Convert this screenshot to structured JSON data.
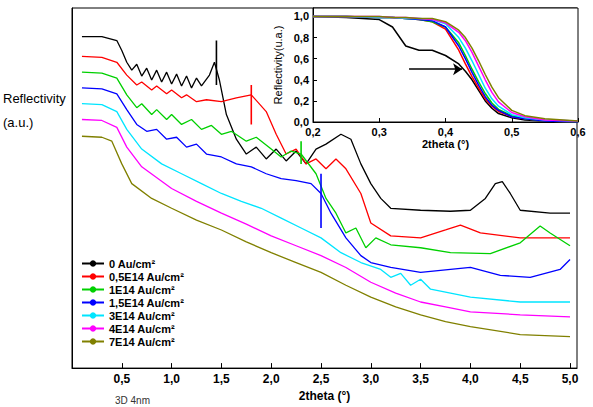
{
  "chart_data": [
    {
      "type": "line",
      "x_label": "2theta (°)",
      "y_label": "Reflectivity (a.u.)",
      "xlim": [
        0,
        5.07
      ],
      "xticks": [
        {
          "value": 0.5,
          "label": "0,5"
        },
        {
          "value": 1.0,
          "label": "1,0"
        },
        {
          "value": 1.5,
          "label": "1,5"
        },
        {
          "value": 2.0,
          "label": "2,0"
        },
        {
          "value": 2.5,
          "label": "2,5"
        },
        {
          "value": 3.0,
          "label": "3,0"
        },
        {
          "value": 3.5,
          "label": "3,5"
        },
        {
          "value": 4.0,
          "label": "4,0"
        },
        {
          "value": 4.5,
          "label": "4,5"
        },
        {
          "value": 5.0,
          "label": "5,0"
        }
      ],
      "ylim": [
        0,
        365
      ],
      "tick_labels": "x",
      "legend": "lower left",
      "annotation": "3D 4nm",
      "series": [
        {
          "name": "0 Au/cm²",
          "color": "#000000",
          "x": [
            0.1,
            0.3,
            0.45,
            0.5,
            0.55,
            0.6,
            0.65,
            0.7,
            0.75,
            0.8,
            0.85,
            0.9,
            0.95,
            1.0,
            1.05,
            1.1,
            1.15,
            1.2,
            1.25,
            1.3,
            1.38,
            1.43,
            1.48,
            1.55,
            1.65,
            1.75,
            1.85,
            1.95,
            2.05,
            2.15,
            2.25,
            2.35,
            2.45,
            2.55,
            2.7,
            2.8,
            2.9,
            3.0,
            3.1,
            3.2,
            3.5,
            3.8,
            4.0,
            4.15,
            4.25,
            4.32,
            4.4,
            4.5,
            4.8,
            5.0
          ],
          "values": [
            336,
            336,
            332,
            322,
            310,
            302,
            308,
            296,
            304,
            292,
            302,
            290,
            300,
            288,
            298,
            286,
            296,
            284,
            294,
            286,
            297,
            310,
            292,
            257,
            232,
            217,
            224,
            212,
            222,
            210,
            220,
            207,
            222,
            227,
            237,
            232,
            207,
            187,
            172,
            162,
            160,
            159,
            160,
            172,
            187,
            189,
            177,
            160,
            157,
            157
          ]
        },
        {
          "name": "0,5E14 Au/cm²",
          "color": "#ff0000",
          "x": [
            0.1,
            0.3,
            0.45,
            0.55,
            0.65,
            0.7,
            0.8,
            0.85,
            0.95,
            1.0,
            1.1,
            1.15,
            1.25,
            1.35,
            1.5,
            1.65,
            1.8,
            1.95,
            2.05,
            2.15,
            2.25,
            2.35,
            2.45,
            2.55,
            2.65,
            2.75,
            2.9,
            3.0,
            3.2,
            3.5,
            3.75,
            3.9,
            4.1,
            4.5,
            5.0
          ],
          "values": [
            316,
            315,
            310,
            297,
            287,
            290,
            282,
            286,
            278,
            282,
            274,
            277,
            270,
            272,
            270,
            274,
            277,
            260,
            237,
            217,
            222,
            207,
            212,
            202,
            212,
            202,
            177,
            147,
            134,
            132,
            140,
            145,
            137,
            132,
            132
          ]
        },
        {
          "name": "1E14 Au/cm²",
          "color": "#00d000",
          "x": [
            0.1,
            0.3,
            0.45,
            0.55,
            0.65,
            0.7,
            0.8,
            0.85,
            0.95,
            1.0,
            1.1,
            1.2,
            1.3,
            1.4,
            1.5,
            1.6,
            1.75,
            1.85,
            2.0,
            2.1,
            2.2,
            2.3,
            2.45,
            2.55,
            2.65,
            2.75,
            2.85,
            2.95,
            3.05,
            3.2,
            3.5,
            3.8,
            4.2,
            4.5,
            4.7,
            4.8,
            5.0
          ],
          "values": [
            300,
            299,
            294,
            277,
            264,
            268,
            257,
            262,
            252,
            257,
            247,
            252,
            242,
            246,
            237,
            240,
            230,
            234,
            222,
            214,
            220,
            217,
            197,
            172,
            157,
            137,
            142,
            122,
            132,
            125,
            122,
            117,
            116,
            127,
            144,
            137,
            124
          ]
        },
        {
          "name": "1,5E14 Au/cm²",
          "color": "#0000ff",
          "x": [
            0.1,
            0.3,
            0.45,
            0.55,
            0.65,
            0.75,
            0.85,
            0.95,
            1.05,
            1.15,
            1.25,
            1.35,
            1.5,
            1.65,
            1.8,
            1.95,
            2.1,
            2.25,
            2.4,
            2.5,
            2.6,
            2.75,
            2.9,
            3.0,
            3.2,
            3.5,
            3.8,
            4.0,
            4.3,
            4.6,
            4.9,
            5.0
          ],
          "values": [
            284,
            283,
            278,
            262,
            247,
            240,
            242,
            232,
            234,
            224,
            227,
            217,
            214,
            207,
            204,
            197,
            192,
            190,
            187,
            177,
            157,
            132,
            114,
            107,
            102,
            97,
            100,
            102,
            94,
            92,
            100,
            110
          ]
        },
        {
          "name": "3E14 Au/cm²",
          "color": "#00e5ff",
          "x": [
            0.1,
            0.3,
            0.45,
            0.55,
            0.7,
            0.9,
            1.1,
            1.3,
            1.5,
            1.7,
            1.9,
            2.1,
            2.3,
            2.5,
            2.7,
            2.9,
            3.1,
            3.2,
            3.3,
            3.4,
            3.5,
            3.6,
            3.8,
            4.0,
            4.5,
            5.0
          ],
          "values": [
            268,
            267,
            260,
            242,
            222,
            207,
            197,
            187,
            177,
            169,
            162,
            152,
            142,
            132,
            117,
            107,
            100,
            92,
            96,
            84,
            90,
            80,
            76,
            72,
            67,
            67
          ]
        },
        {
          "name": "4E14 Au/cm²",
          "color": "#ff00ff",
          "x": [
            0.1,
            0.3,
            0.45,
            0.55,
            0.7,
            1.0,
            1.25,
            1.5,
            1.75,
            2.0,
            2.25,
            2.5,
            2.75,
            3.0,
            3.25,
            3.5,
            3.75,
            4.0,
            4.5,
            5.0
          ],
          "values": [
            252,
            251,
            244,
            224,
            204,
            182,
            169,
            157,
            146,
            134,
            124,
            114,
            102,
            87,
            76,
            67,
            62,
            57,
            54,
            52
          ]
        },
        {
          "name": "7E14 Au/cm²",
          "color": "#808000",
          "x": [
            0.1,
            0.3,
            0.4,
            0.5,
            0.6,
            0.8,
            1.0,
            1.25,
            1.5,
            1.75,
            2.0,
            2.25,
            2.5,
            2.75,
            3.0,
            3.25,
            3.5,
            3.75,
            4.0,
            4.5,
            5.0
          ],
          "values": [
            235,
            234,
            230,
            207,
            187,
            172,
            162,
            150,
            140,
            128,
            117,
            107,
            97,
            84,
            72,
            62,
            54,
            47,
            42,
            34,
            32
          ]
        }
      ],
      "markers": [
        {
          "x": 1.45,
          "y0": 287,
          "y1": 332,
          "color": "#000000"
        },
        {
          "x": 1.8,
          "y0": 247,
          "y1": 287,
          "color": "#ff0000"
        },
        {
          "x": 2.3,
          "y0": 207,
          "y1": 230,
          "color": "#00d000"
        },
        {
          "x": 2.5,
          "y0": 142,
          "y1": 197,
          "color": "#0000ff"
        }
      ]
    },
    {
      "type": "line",
      "x_label": "2theta (°)",
      "y_label": "Reflectivity(u.a.)",
      "xlim": [
        0.2,
        0.6
      ],
      "xticks": [
        {
          "value": 0.2,
          "label": "0,2"
        },
        {
          "value": 0.3,
          "label": "0,3"
        },
        {
          "value": 0.4,
          "label": "0,4"
        },
        {
          "value": 0.5,
          "label": "0,5"
        },
        {
          "value": 0.6,
          "label": "0,6"
        }
      ],
      "ylim": [
        0,
        1.08
      ],
      "yticks": [
        {
          "value": 0.0,
          "label": "0,0"
        },
        {
          "value": 0.2,
          "label": "0,2"
        },
        {
          "value": 0.4,
          "label": "0,4"
        },
        {
          "value": 0.6,
          "label": "0,6"
        },
        {
          "value": 0.8,
          "label": "0,8"
        },
        {
          "value": 1.0,
          "label": "1,0"
        }
      ],
      "x": [
        0.2,
        0.25,
        0.3,
        0.32,
        0.34,
        0.36,
        0.38,
        0.4,
        0.42,
        0.43,
        0.44,
        0.45,
        0.46,
        0.47,
        0.48,
        0.5,
        0.52,
        0.55,
        0.6
      ],
      "series": [
        {
          "color": "#000000",
          "values": [
            1.0,
            0.99,
            0.97,
            0.9,
            0.72,
            0.68,
            0.68,
            0.63,
            0.55,
            0.48,
            0.4,
            0.3,
            0.2,
            0.13,
            0.08,
            0.04,
            0.02,
            0.01,
            0.0
          ]
        },
        {
          "color": "#ff0000",
          "values": [
            1.0,
            1.0,
            0.99,
            0.99,
            0.98,
            0.97,
            0.95,
            0.88,
            0.68,
            0.55,
            0.43,
            0.32,
            0.22,
            0.15,
            0.1,
            0.05,
            0.03,
            0.01,
            0.0
          ]
        },
        {
          "color": "#00d000",
          "values": [
            1.0,
            1.0,
            0.99,
            0.99,
            0.98,
            0.97,
            0.95,
            0.9,
            0.75,
            0.63,
            0.5,
            0.38,
            0.27,
            0.18,
            0.12,
            0.06,
            0.03,
            0.01,
            0.0
          ]
        },
        {
          "color": "#0000ff",
          "values": [
            1.0,
            1.0,
            0.99,
            0.99,
            0.98,
            0.97,
            0.96,
            0.9,
            0.72,
            0.6,
            0.47,
            0.35,
            0.24,
            0.16,
            0.11,
            0.05,
            0.03,
            0.01,
            0.0
          ]
        },
        {
          "color": "#00e5ff",
          "values": [
            1.0,
            1.0,
            0.99,
            0.99,
            0.98,
            0.98,
            0.97,
            0.93,
            0.8,
            0.7,
            0.58,
            0.45,
            0.32,
            0.22,
            0.15,
            0.07,
            0.04,
            0.02,
            0.01
          ]
        },
        {
          "color": "#ff00ff",
          "values": [
            1.0,
            1.0,
            1.0,
            0.99,
            0.99,
            0.98,
            0.97,
            0.94,
            0.85,
            0.77,
            0.66,
            0.53,
            0.4,
            0.28,
            0.19,
            0.09,
            0.05,
            0.02,
            0.01
          ]
        },
        {
          "color": "#808000",
          "values": [
            1.0,
            1.0,
            1.0,
            0.99,
            0.99,
            0.98,
            0.98,
            0.95,
            0.87,
            0.8,
            0.7,
            0.58,
            0.45,
            0.33,
            0.23,
            0.11,
            0.06,
            0.03,
            0.01
          ]
        }
      ],
      "arrow": {
        "from": [
          0.345,
          0.5
        ],
        "to": [
          0.425,
          0.5
        ]
      }
    }
  ]
}
